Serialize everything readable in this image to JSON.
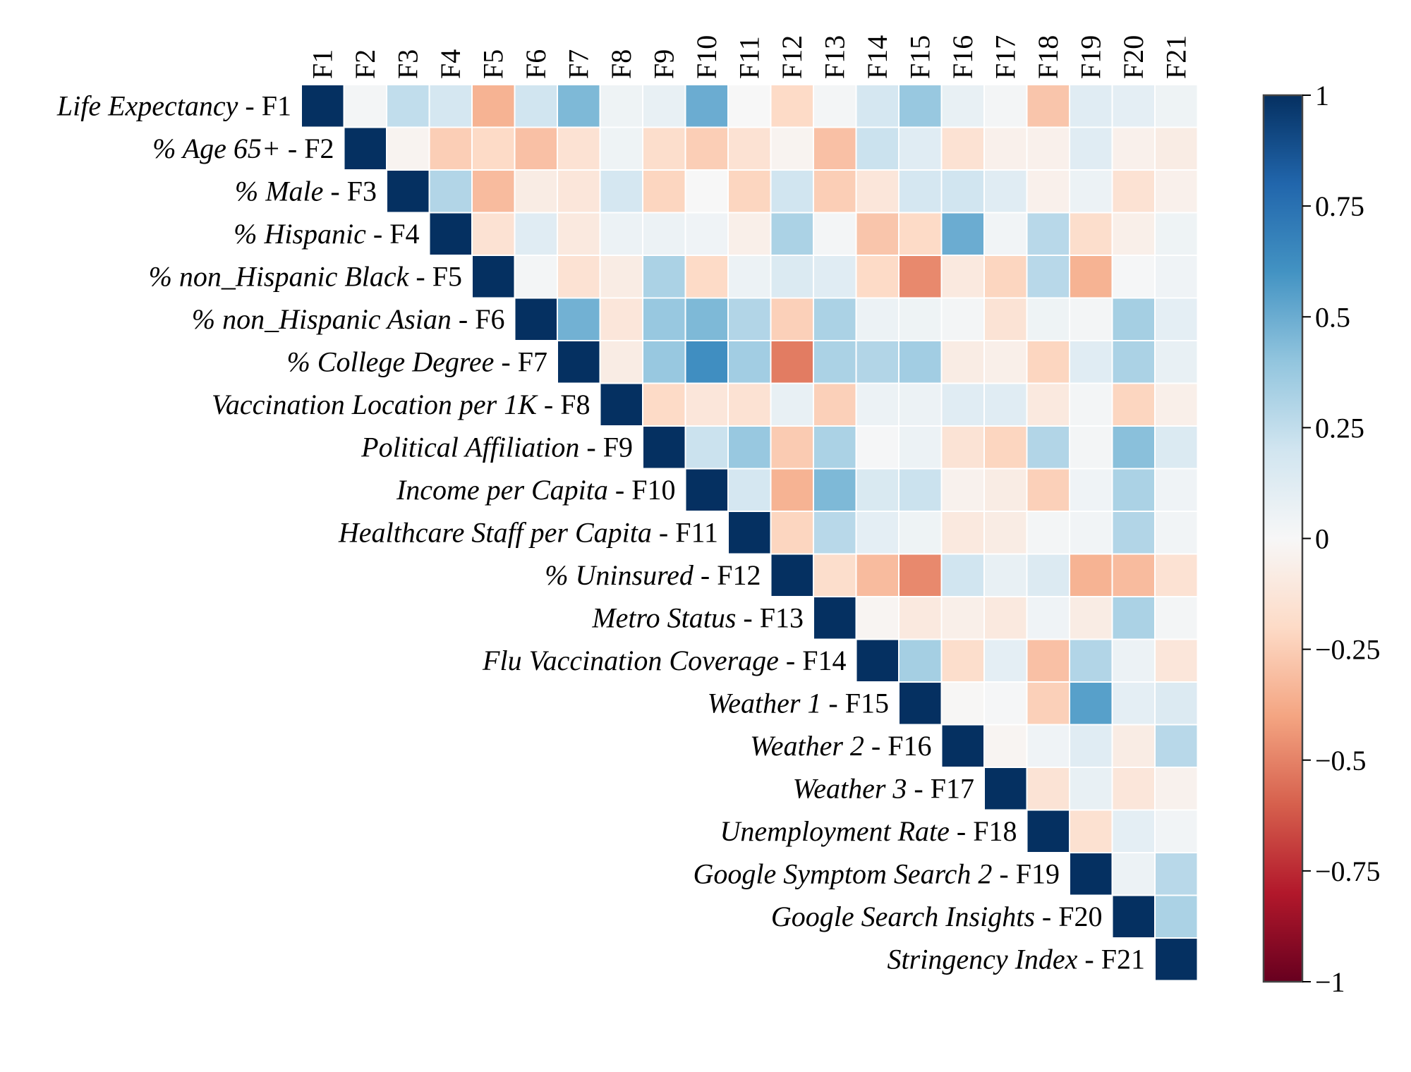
{
  "chart_data": {
    "type": "heatmap",
    "triangle": "upper",
    "columns": [
      "F1",
      "F2",
      "F3",
      "F4",
      "F5",
      "F6",
      "F7",
      "F8",
      "F9",
      "F10",
      "F11",
      "F12",
      "F13",
      "F14",
      "F15",
      "F16",
      "F17",
      "F18",
      "F19",
      "F20",
      "F21"
    ],
    "rows": [
      {
        "name": "Life Expectancy",
        "code": "F1"
      },
      {
        "name": "% Age 65+",
        "code": "F2"
      },
      {
        "name": "% Male",
        "code": "F3"
      },
      {
        "name": "% Hispanic",
        "code": "F4"
      },
      {
        "name": "% non_Hispanic Black",
        "code": "F5"
      },
      {
        "name": "% non_Hispanic Asian",
        "code": "F6"
      },
      {
        "name": "% College Degree",
        "code": "F7"
      },
      {
        "name": "Vaccination Location per 1K",
        "code": "F8"
      },
      {
        "name": "Political Affiliation",
        "code": "F9"
      },
      {
        "name": "Income per Capita",
        "code": "F10"
      },
      {
        "name": "Healthcare Staff per Capita",
        "code": "F11"
      },
      {
        "name": "% Uninsured",
        "code": "F12"
      },
      {
        "name": "Metro Status",
        "code": "F13"
      },
      {
        "name": "Flu Vaccination Coverage",
        "code": "F14"
      },
      {
        "name": "Weather 1",
        "code": "F15"
      },
      {
        "name": "Weather 2",
        "code": "F16"
      },
      {
        "name": "Weather 3",
        "code": "F17"
      },
      {
        "name": "Unemployment Rate",
        "code": "F18"
      },
      {
        "name": "Google Symptom Search 2",
        "code": "F19"
      },
      {
        "name": "Google Search Insights",
        "code": "F20"
      },
      {
        "name": "Stringency Index",
        "code": "F21"
      }
    ],
    "label_separator": " - ",
    "values": [
      [
        1.0,
        0.02,
        0.25,
        0.18,
        -0.35,
        0.2,
        0.45,
        0.05,
        0.08,
        0.5,
        0.0,
        -0.2,
        0.02,
        0.18,
        0.38,
        0.08,
        0.02,
        -0.28,
        0.12,
        0.1,
        0.05
      ],
      [
        null,
        1.0,
        -0.03,
        -0.25,
        -0.2,
        -0.3,
        -0.15,
        0.05,
        -0.18,
        -0.25,
        -0.15,
        -0.03,
        -0.3,
        0.22,
        0.12,
        -0.15,
        -0.05,
        -0.05,
        0.12,
        -0.05,
        -0.08
      ],
      [
        null,
        null,
        1.0,
        0.3,
        -0.32,
        -0.08,
        -0.12,
        0.18,
        -0.22,
        0.0,
        -0.22,
        0.2,
        -0.25,
        -0.12,
        0.18,
        0.2,
        0.12,
        -0.05,
        0.06,
        -0.15,
        -0.05
      ],
      [
        null,
        null,
        null,
        1.0,
        -0.15,
        0.12,
        -0.1,
        0.06,
        0.06,
        0.04,
        -0.06,
        0.32,
        0.02,
        -0.28,
        -0.2,
        0.5,
        0.03,
        0.28,
        -0.18,
        -0.06,
        0.05
      ],
      [
        null,
        null,
        null,
        null,
        1.0,
        0.02,
        -0.15,
        -0.08,
        0.32,
        -0.2,
        0.06,
        0.15,
        0.12,
        -0.2,
        -0.48,
        -0.1,
        -0.22,
        0.28,
        -0.35,
        0.01,
        0.04
      ],
      [
        null,
        null,
        null,
        null,
        null,
        1.0,
        0.48,
        -0.12,
        0.38,
        0.45,
        0.3,
        -0.24,
        0.32,
        0.06,
        0.05,
        0.02,
        -0.14,
        0.05,
        0.02,
        0.34,
        0.1
      ],
      [
        null,
        null,
        null,
        null,
        null,
        null,
        1.0,
        -0.08,
        0.38,
        0.62,
        0.35,
        -0.52,
        0.32,
        0.3,
        0.35,
        -0.08,
        -0.06,
        -0.22,
        0.12,
        0.32,
        0.08
      ],
      [
        null,
        null,
        null,
        null,
        null,
        null,
        null,
        1.0,
        -0.2,
        -0.12,
        -0.15,
        0.08,
        -0.24,
        0.06,
        0.06,
        0.12,
        0.12,
        -0.1,
        0.02,
        -0.22,
        -0.06
      ],
      [
        null,
        null,
        null,
        null,
        null,
        null,
        null,
        null,
        1.0,
        0.22,
        0.38,
        -0.26,
        0.32,
        0.01,
        0.06,
        -0.14,
        -0.22,
        0.3,
        0.02,
        0.42,
        0.15
      ],
      [
        null,
        null,
        null,
        null,
        null,
        null,
        null,
        null,
        null,
        1.0,
        0.18,
        -0.35,
        0.45,
        0.16,
        0.22,
        -0.04,
        -0.08,
        -0.24,
        0.04,
        0.32,
        0.04
      ],
      [
        null,
        null,
        null,
        null,
        null,
        null,
        null,
        null,
        null,
        null,
        1.0,
        -0.22,
        0.28,
        0.1,
        0.05,
        -0.1,
        -0.08,
        0.02,
        0.03,
        0.3,
        0.03
      ],
      [
        null,
        null,
        null,
        null,
        null,
        null,
        null,
        null,
        null,
        null,
        null,
        1.0,
        -0.18,
        -0.32,
        -0.48,
        0.2,
        0.08,
        0.14,
        -0.35,
        -0.32,
        -0.15
      ],
      [
        null,
        null,
        null,
        null,
        null,
        null,
        null,
        null,
        null,
        null,
        null,
        null,
        1.0,
        -0.02,
        -0.1,
        -0.06,
        -0.1,
        0.04,
        -0.08,
        0.32,
        0.02
      ],
      [
        null,
        null,
        null,
        null,
        null,
        null,
        null,
        null,
        null,
        null,
        null,
        null,
        null,
        1.0,
        0.34,
        -0.18,
        0.1,
        -0.3,
        0.3,
        0.06,
        -0.12
      ],
      [
        null,
        null,
        null,
        null,
        null,
        null,
        null,
        null,
        null,
        null,
        null,
        null,
        null,
        null,
        1.0,
        -0.01,
        0.01,
        -0.24,
        0.55,
        0.1,
        0.14
      ],
      [
        null,
        null,
        null,
        null,
        null,
        null,
        null,
        null,
        null,
        null,
        null,
        null,
        null,
        null,
        null,
        1.0,
        -0.02,
        0.04,
        0.12,
        -0.08,
        0.28
      ],
      [
        null,
        null,
        null,
        null,
        null,
        null,
        null,
        null,
        null,
        null,
        null,
        null,
        null,
        null,
        null,
        null,
        1.0,
        -0.14,
        0.08,
        -0.12,
        -0.04
      ],
      [
        null,
        null,
        null,
        null,
        null,
        null,
        null,
        null,
        null,
        null,
        null,
        null,
        null,
        null,
        null,
        null,
        null,
        1.0,
        -0.16,
        0.1,
        0.03
      ],
      [
        null,
        null,
        null,
        null,
        null,
        null,
        null,
        null,
        null,
        null,
        null,
        null,
        null,
        null,
        null,
        null,
        null,
        null,
        1.0,
        0.06,
        0.28
      ],
      [
        null,
        null,
        null,
        null,
        null,
        null,
        null,
        null,
        null,
        null,
        null,
        null,
        null,
        null,
        null,
        null,
        null,
        null,
        null,
        1.0,
        0.32
      ],
      [
        null,
        null,
        null,
        null,
        null,
        null,
        null,
        null,
        null,
        null,
        null,
        null,
        null,
        null,
        null,
        null,
        null,
        null,
        null,
        null,
        1.0
      ]
    ],
    "colorbar": {
      "range": [
        -1,
        1
      ],
      "ticks": [
        1,
        0.75,
        0.5,
        0.25,
        0,
        -0.25,
        -0.5,
        -0.75,
        -1
      ],
      "tick_labels": [
        "1",
        "0.75",
        "0.5",
        "0.25",
        "0",
        "−0.25",
        "−0.5",
        "−0.75",
        "−1"
      ],
      "colormap": "RdBu",
      "colormap_stops": [
        "#67001f",
        "#b2182b",
        "#d6604d",
        "#f4a582",
        "#fddbc7",
        "#f7f7f7",
        "#d1e5f0",
        "#92c5de",
        "#4393c3",
        "#2166ac",
        "#053061"
      ],
      "location": "right"
    },
    "grid_color": "#ffffff"
  }
}
